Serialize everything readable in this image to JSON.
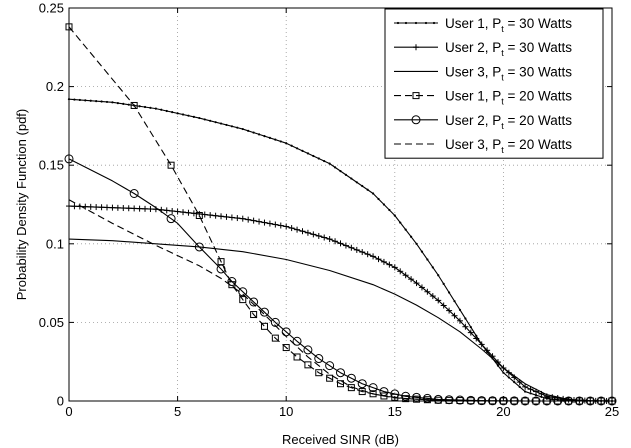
{
  "chart_data": {
    "type": "line",
    "xlabel": "Received SINR (dB)",
    "ylabel": "Probability Density Function (pdf)",
    "xlim": [
      0,
      25
    ],
    "ylim": [
      0,
      0.25
    ],
    "xticks": [
      0,
      5,
      10,
      15,
      20,
      25
    ],
    "xtick_labels": [
      "0",
      "5",
      "10",
      "15",
      "20",
      "25"
    ],
    "yticks": [
      0,
      0.05,
      0.1,
      0.15,
      0.2,
      0.25
    ],
    "ytick_labels": [
      "0",
      "0.05",
      "0.1",
      "0.15",
      "0.2",
      "0.25"
    ],
    "grid": true,
    "legend_position": "top-right",
    "series": [
      {
        "legend": {
          "prefix": "User 1, P",
          "sub": "t",
          "suffix": " = 30 Watts"
        },
        "line_style": "solid",
        "marker": "dot",
        "color": "#000000",
        "x": [
          0,
          2,
          4,
          6,
          8,
          10,
          12,
          14,
          15,
          16,
          17,
          18,
          19,
          20,
          21,
          22,
          23,
          24,
          25
        ],
        "y": [
          0.192,
          0.19,
          0.186,
          0.18,
          0.173,
          0.164,
          0.151,
          0.132,
          0.118,
          0.1,
          0.08,
          0.058,
          0.036,
          0.018,
          0.006,
          0.0015,
          0.0003,
          0.0,
          0.0
        ]
      },
      {
        "legend": {
          "prefix": "User 2, P",
          "sub": "t",
          "suffix": " = 30 Watts"
        },
        "line_style": "solid",
        "marker": "plus",
        "color": "#000000",
        "x": [
          0,
          2,
          4,
          6,
          8,
          10,
          12,
          14,
          15,
          16,
          17,
          18,
          19,
          20,
          21,
          22,
          23,
          24,
          25
        ],
        "y": [
          0.124,
          0.123,
          0.122,
          0.119,
          0.116,
          0.111,
          0.103,
          0.092,
          0.085,
          0.075,
          0.064,
          0.051,
          0.036,
          0.021,
          0.009,
          0.003,
          0.0008,
          0.0001,
          0.0
        ]
      },
      {
        "legend": {
          "prefix": "User 3, P",
          "sub": "t",
          "suffix": " = 30 Watts"
        },
        "line_style": "solid",
        "marker": "none",
        "color": "#000000",
        "x": [
          0,
          2,
          4,
          6,
          8,
          10,
          12,
          14,
          15,
          16,
          17,
          18,
          19,
          20,
          21,
          22,
          23,
          24,
          25
        ],
        "y": [
          0.103,
          0.102,
          0.1,
          0.098,
          0.095,
          0.09,
          0.083,
          0.074,
          0.068,
          0.061,
          0.053,
          0.044,
          0.033,
          0.021,
          0.011,
          0.004,
          0.001,
          0.0002,
          0.0
        ]
      },
      {
        "legend": {
          "prefix": "User 1, P",
          "sub": "t",
          "suffix": " = 20 Watts"
        },
        "line_style": "dashed",
        "marker": "square",
        "color": "#000000",
        "x": [
          0,
          3,
          4.7,
          6,
          7.5,
          8.5,
          9.5,
          10.5,
          11.5,
          12.5,
          13.5,
          14.5,
          15.5,
          17,
          19,
          21,
          23,
          25
        ],
        "y": [
          0.238,
          0.188,
          0.15,
          0.118,
          0.074,
          0.055,
          0.04,
          0.028,
          0.018,
          0.011,
          0.006,
          0.0032,
          0.0015,
          0.0005,
          0.0001,
          0.0,
          0.0,
          0.0
        ]
      },
      {
        "legend": {
          "prefix": "User 2, P",
          "sub": "t",
          "suffix": " = 20 Watts"
        },
        "line_style": "solid",
        "marker": "circle",
        "color": "#000000",
        "x": [
          0,
          2,
          3,
          4,
          5,
          6,
          7,
          7.5,
          8.5,
          9.5,
          10.5,
          11.5,
          12.5,
          13.5,
          14.5,
          15.5,
          17,
          19,
          21,
          23,
          25
        ],
        "y": [
          0.154,
          0.14,
          0.132,
          0.123,
          0.113,
          0.098,
          0.084,
          0.076,
          0.063,
          0.05,
          0.038,
          0.027,
          0.018,
          0.011,
          0.006,
          0.003,
          0.001,
          0.0002,
          0.0,
          0.0,
          0.0
        ]
      },
      {
        "legend": {
          "prefix": "User 3, P",
          "sub": "t",
          "suffix": " = 20 Watts"
        },
        "line_style": "dashed",
        "marker": "none",
        "color": "#000000",
        "x": [
          0,
          2,
          4,
          6,
          7,
          8,
          9,
          10,
          11,
          12,
          13,
          14,
          15,
          17,
          19,
          21,
          23,
          25
        ],
        "y": [
          0.128,
          0.113,
          0.099,
          0.086,
          0.078,
          0.068,
          0.055,
          0.041,
          0.028,
          0.017,
          0.009,
          0.0045,
          0.002,
          0.0004,
          0.0001,
          0.0,
          0.0,
          0.0
        ]
      }
    ]
  }
}
